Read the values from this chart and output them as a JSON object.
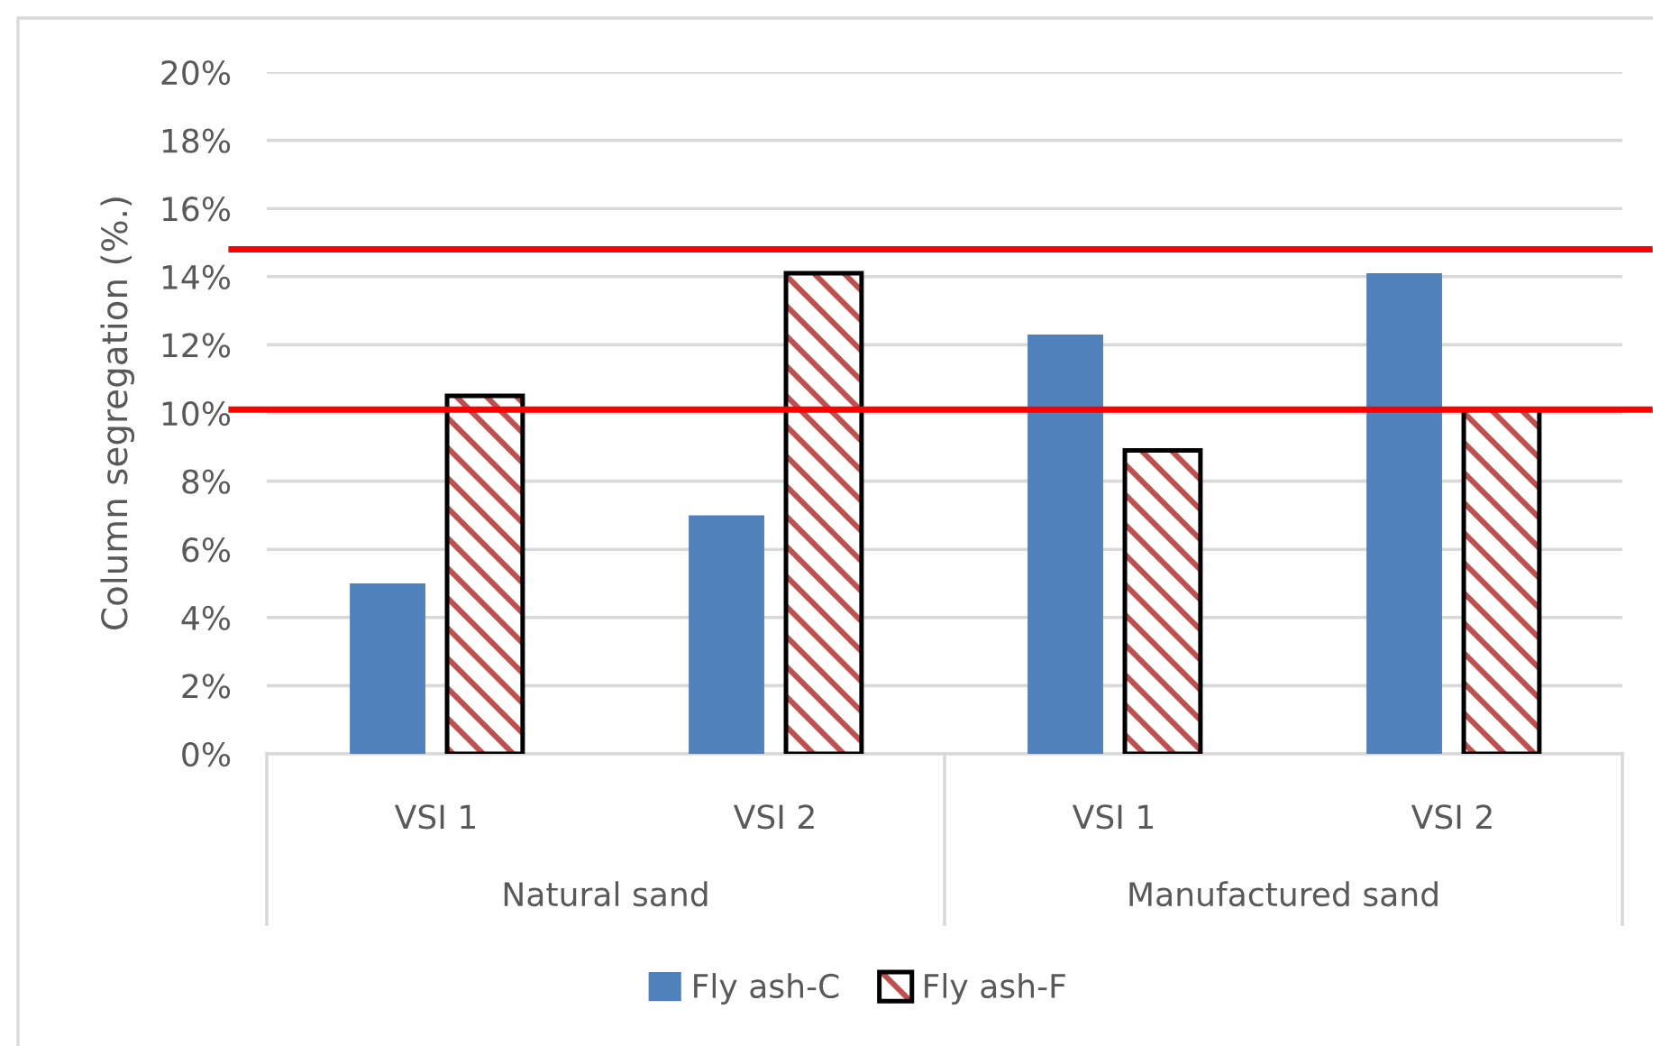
{
  "chart_data": {
    "type": "bar",
    "ylabel": "Column segregation (%.)",
    "categories": [
      "VSI 1",
      "VSI 2",
      "VSI 1",
      "VSI 2"
    ],
    "series": [
      {
        "name": "Fly ash-C",
        "color": "#4f81bd",
        "values": [
          5.0,
          7.0,
          12.3,
          14.1
        ]
      },
      {
        "name": "Fly ash-F",
        "color": "#c0504d",
        "values": [
          10.5,
          14.1,
          8.9,
          10.1
        ]
      }
    ],
    "ylim": [
      0,
      20
    ],
    "yticks": [
      {
        "value": 0,
        "label": "0%"
      },
      {
        "value": 2,
        "label": "2%"
      },
      {
        "value": 4,
        "label": "4%"
      },
      {
        "value": 6,
        "label": "6%"
      },
      {
        "value": 8,
        "label": "8%"
      },
      {
        "value": 10,
        "label": "10%"
      },
      {
        "value": 12,
        "label": "12%"
      },
      {
        "value": 14,
        "label": "14%"
      },
      {
        "value": 16,
        "label": "16%"
      },
      {
        "value": 18,
        "label": "18%"
      },
      {
        "value": 20,
        "label": "20%"
      }
    ],
    "ref_lines": [
      {
        "axis": "y",
        "value": 14.8,
        "color": "#ff0000"
      },
      {
        "axis": "y",
        "value": 10.1,
        "color": "#ff0000"
      }
    ],
    "annotations": [
      "Natural sand",
      "Manufactured sand"
    ],
    "grid": "y",
    "legend": "bottom"
  }
}
